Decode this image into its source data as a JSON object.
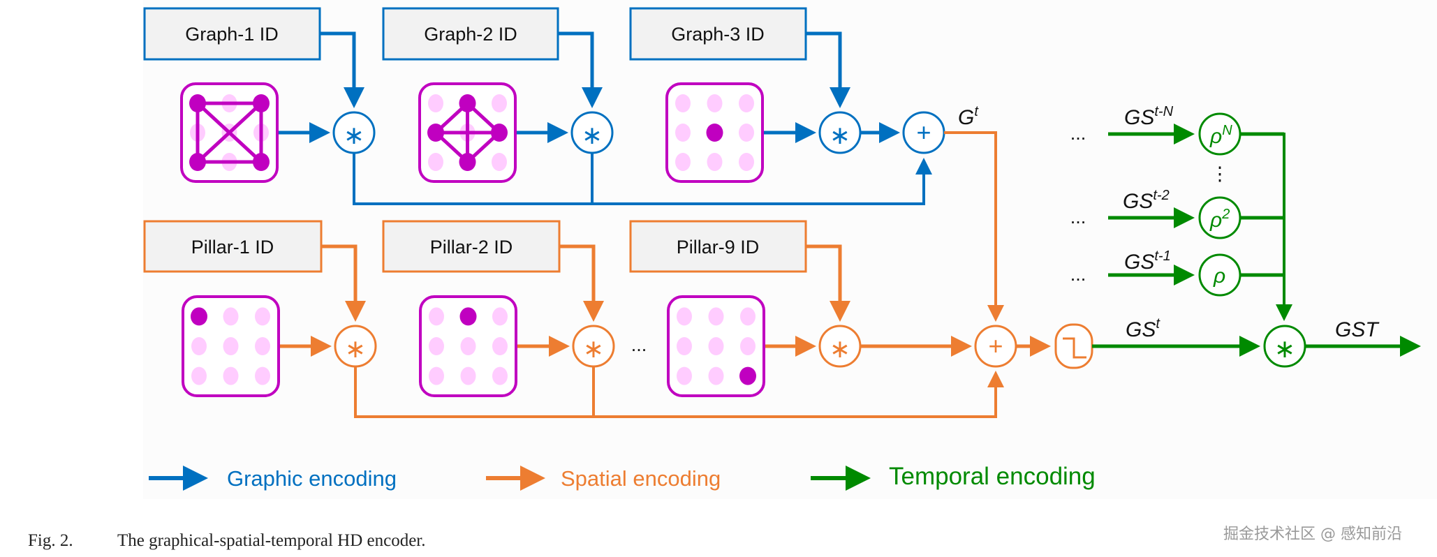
{
  "colors": {
    "graphic": "#0070c0",
    "spatial": "#ed7d31",
    "temporal": "#008a00",
    "node_active": "#c000c0",
    "node_inactive": "#ffccff"
  },
  "graph_row": {
    "ids": [
      "Graph-1 ID",
      "Graph-2 ID",
      "Graph-3 ID"
    ],
    "images": [
      {
        "active": [
          0,
          2,
          6,
          8
        ],
        "edges": [
          [
            0,
            2
          ],
          [
            2,
            8
          ],
          [
            8,
            6
          ],
          [
            6,
            0
          ],
          [
            0,
            8
          ],
          [
            2,
            6
          ]
        ]
      },
      {
        "active": [
          1,
          3,
          5,
          7
        ],
        "edges": [
          [
            1,
            3
          ],
          [
            1,
            5
          ],
          [
            3,
            7
          ],
          [
            5,
            7
          ],
          [
            1,
            7
          ],
          [
            3,
            5
          ]
        ]
      },
      {
        "active": [
          4
        ],
        "edges": []
      }
    ],
    "bind_op": "∗",
    "bundle_op": "+",
    "output": {
      "base": "G",
      "sup": "t"
    }
  },
  "pillar_row": {
    "ids": [
      "Pillar-1 ID",
      "Pillar-2 ID",
      "Pillar-9 ID"
    ],
    "images": [
      {
        "active": [
          0
        ],
        "edges": []
      },
      {
        "active": [
          1
        ],
        "edges": []
      },
      {
        "active": [
          8
        ],
        "edges": []
      }
    ],
    "ellipsis": "...",
    "bind_op": "∗",
    "bundle_op": "+"
  },
  "temporal": {
    "inputs": [
      {
        "base": "GS",
        "sup": "t-N",
        "perm": "ρ",
        "perm_sup": "N"
      },
      {
        "base": "GS",
        "sup": "t-2",
        "perm": "ρ",
        "perm_sup": "2"
      },
      {
        "base": "GS",
        "sup": "t-1",
        "perm": "ρ",
        "perm_sup": ""
      }
    ],
    "ellipsis": "...",
    "vertical_ellipsis": "⋮",
    "current": {
      "base": "GS",
      "sup": "t"
    },
    "bind_op": "∗",
    "output": "GST"
  },
  "legend": [
    {
      "label": "Graphic encoding",
      "color": "#0070c0"
    },
    {
      "label": "Spatial encoding",
      "color": "#ed7d31"
    },
    {
      "label": "Temporal encoding",
      "color": "#008a00"
    }
  ],
  "caption": {
    "number": "Fig. 2.",
    "text": "The graphical-spatial-temporal HD encoder."
  },
  "watermark": "掘金技术社区 @ 感知前沿"
}
